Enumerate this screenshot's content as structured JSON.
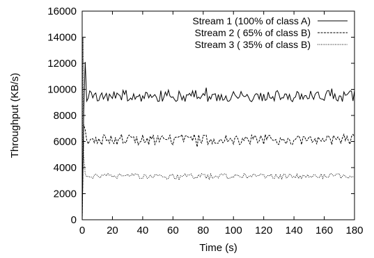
{
  "chart_data": {
    "type": "line",
    "title": "",
    "xlabel": "Time (s)",
    "ylabel": "Throughput (KB/s)",
    "xlim": [
      0,
      180
    ],
    "ylim": [
      0,
      16000
    ],
    "xticks": [
      0,
      20,
      40,
      60,
      80,
      100,
      120,
      140,
      160,
      180
    ],
    "yticks": [
      0,
      2000,
      4000,
      6000,
      8000,
      10000,
      12000,
      14000,
      16000
    ],
    "grid": false,
    "legend_position": "top-right",
    "series": [
      {
        "name": "Stream 1 (100% of class A)",
        "style": "solid",
        "color": "#000000",
        "base": 9500,
        "amplitude": 450,
        "startup": [
          [
            0,
            0
          ],
          [
            1,
            8200
          ],
          [
            2,
            12100
          ],
          [
            3,
            9100
          ]
        ]
      },
      {
        "name": "Stream 2 ( 65% of class B)",
        "style": "dashed",
        "color": "#000000",
        "base": 6150,
        "amplitude": 400,
        "startup": [
          [
            0,
            0
          ],
          [
            1,
            7300
          ],
          [
            2,
            6900
          ],
          [
            3,
            6100
          ]
        ]
      },
      {
        "name": "Stream 3 ( 35% of class B)",
        "style": "dotted",
        "color": "#000000",
        "base": 3350,
        "amplitude": 200,
        "startup": [
          [
            0,
            0
          ],
          [
            0.5,
            14000
          ],
          [
            1,
            5000
          ],
          [
            2,
            3500
          ],
          [
            3,
            3300
          ]
        ]
      }
    ]
  }
}
